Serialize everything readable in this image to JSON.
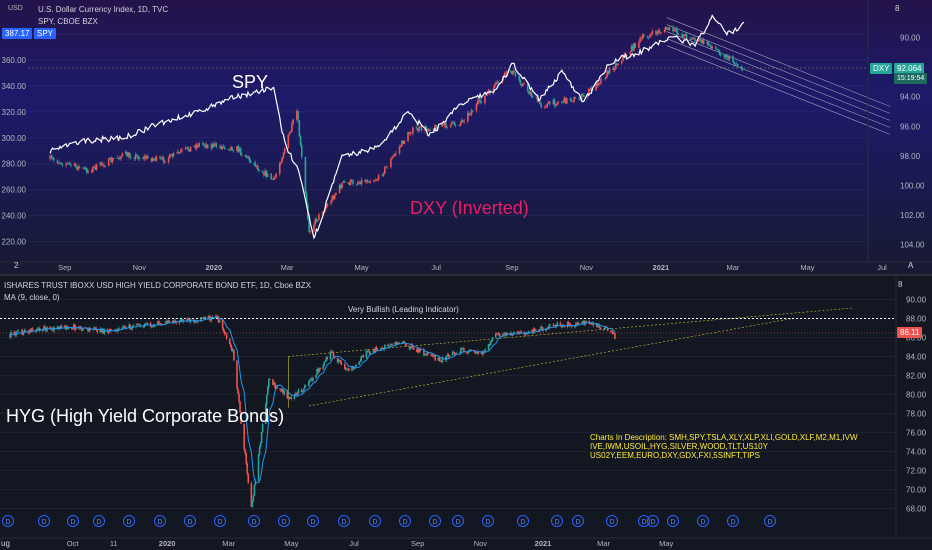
{
  "top": {
    "axis_unit": "USD",
    "title": "U.S. Dollar Currency Index, 1D, TVC",
    "subtitle": "SPY, CBOE BZX",
    "spy_price_badge": "387.17",
    "spy_badge_label": "SPY",
    "dxy_badge_label": "DXY",
    "dxy_price_badge": "92.064",
    "dxy_timer": "15:19:54",
    "label_spy": "SPY",
    "label_dxy": "DXY (Inverted)",
    "corner_right": "8",
    "corner_left": "2",
    "axis_end_label": "A"
  },
  "bottom": {
    "title": "ISHARES TRUST IBOXX USD HIGH YIELD CORPORATE BOND ETF, 1D, Cboe BZX",
    "indicator": "MA (9, close, 0)",
    "price_badge": "86.11",
    "annotation": "Very Bullish (Leading Indicator)",
    "label_hyg": "HYG (High Yield Corporate Bonds)",
    "description_lines": [
      "Charts In Description: SMH,SPY,TSLA,XLY,XLP,XLI,GOLD,XLF,M2,M1,IVW",
      "IVE,IWM,USOIL,HYG,SILVER,WOOD,TLT,US10Y",
      "US02Y,EEM,EURO,DXY,GDX,FXI,5SINFT,TIPS"
    ],
    "dividend_marker": "D",
    "corner_left": "ug",
    "corner_right": "8"
  },
  "colors": {
    "up": "#26a69a",
    "down": "#ef5350",
    "spy_line": "#ffffff",
    "ma_line": "#2196f3",
    "dxy_text": "#e91e63",
    "channel": "#c9cad6",
    "wedge": "#c8c832",
    "dotted": "#ffffff",
    "desc_text": "#ffeb3b",
    "dividend": "#2962ff"
  },
  "chart_data": [
    {
      "type": "line",
      "name": "dxy_spy_overlay",
      "title": "U.S. Dollar Currency Index, 1D, TVC",
      "x_ticks": [
        "Sep",
        "Nov",
        "2020",
        "Mar",
        "May",
        "Jul",
        "Sep",
        "Nov",
        "2021",
        "Mar",
        "May",
        "Jul"
      ],
      "left_axis": {
        "label": "USD",
        "ticks": [
          220,
          240,
          260,
          280,
          300,
          320,
          340,
          360,
          380
        ],
        "ylim": [
          212,
          400
        ]
      },
      "right_axis": {
        "inverted": true,
        "ticks": [
          90,
          92,
          94,
          96,
          98,
          100,
          102,
          104
        ],
        "ylim": [
          88,
          104.5
        ]
      },
      "series": [
        {
          "name": "SPY",
          "x": [
            "2019-08-20",
            "2019-09-20",
            "2019-10-20",
            "2019-11-20",
            "2019-12-20",
            "2020-01-20",
            "2020-02-19",
            "2020-02-28",
            "2020-03-10",
            "2020-03-23",
            "2020-04-15",
            "2020-05-15",
            "2020-06-08",
            "2020-06-26",
            "2020-07-20",
            "2020-08-20",
            "2020-09-02",
            "2020-09-23",
            "2020-10-12",
            "2020-10-30",
            "2020-11-20",
            "2020-12-20",
            "2021-01-10",
            "2021-01-29",
            "2021-02-12",
            "2021-02-25",
            "2021-03-10"
          ],
          "values": [
            290,
            298,
            300,
            312,
            320,
            332,
            338,
            296,
            275,
            222,
            285,
            293,
            320,
            302,
            325,
            338,
            357,
            330,
            350,
            328,
            358,
            368,
            378,
            372,
            392,
            380,
            387.17
          ]
        },
        {
          "name": "DXY (Inverted)",
          "x": [
            "2019-08-20",
            "2019-09-20",
            "2019-10-20",
            "2019-11-20",
            "2019-12-20",
            "2020-01-20",
            "2020-02-19",
            "2020-03-09",
            "2020-03-19",
            "2020-04-15",
            "2020-05-15",
            "2020-06-10",
            "2020-07-20",
            "2020-08-31",
            "2020-09-25",
            "2020-10-30",
            "2020-12-17",
            "2021-01-06",
            "2021-02-10",
            "2021-03-09"
          ],
          "values": [
            98.2,
            99.0,
            97.9,
            98.3,
            97.2,
            97.5,
            99.7,
            95.0,
            103.0,
            99.9,
            99.5,
            96.3,
            95.8,
            92.2,
            94.6,
            94.0,
            90.0,
            89.4,
            90.5,
            92.064
          ]
        }
      ]
    },
    {
      "type": "line",
      "name": "hyg",
      "title": "ISHARES TRUST IBOXX USD HIGH YIELD CORPORATE BOND ETF, 1D, Cboe BZX",
      "x_ticks": [
        "ug",
        "Oct",
        "11",
        "2020",
        "Mar",
        "May",
        "Jul",
        "Sep",
        "Nov",
        "2021",
        "Mar",
        "May"
      ],
      "y_axis": {
        "ticks": [
          68,
          70,
          72,
          74,
          76,
          78,
          80,
          82,
          84,
          86,
          88,
          90
        ],
        "ylim": [
          67,
          91
        ]
      },
      "series": [
        {
          "name": "HYG",
          "x": [
            "2019-08-01",
            "2019-09-01",
            "2019-10-01",
            "2019-11-01",
            "2019-12-01",
            "2020-01-01",
            "2020-02-19",
            "2020-03-05",
            "2020-03-23",
            "2020-04-09",
            "2020-04-30",
            "2020-05-15",
            "2020-06-08",
            "2020-06-26",
            "2020-07-15",
            "2020-08-15",
            "2020-09-23",
            "2020-10-15",
            "2020-11-02",
            "2020-11-16",
            "2020-12-15",
            "2021-01-15",
            "2021-02-15",
            "2021-03-05",
            "2021-03-12"
          ],
          "values": [
            86.3,
            86.9,
            87.1,
            86.7,
            87.2,
            87.6,
            88.1,
            84.5,
            68.0,
            81.5,
            79.6,
            80.8,
            84.4,
            82.5,
            84.5,
            85.5,
            83.6,
            84.7,
            84.2,
            86.3,
            86.5,
            87.3,
            87.5,
            86.8,
            86.11
          ]
        },
        {
          "name": "MA (9, close, 0)",
          "values_note": "9-day moving average of HYG close"
        }
      ],
      "annotations": [
        {
          "text": "Very Bullish (Leading Indicator)",
          "type": "horizontal_line",
          "y": 88
        }
      ]
    }
  ]
}
